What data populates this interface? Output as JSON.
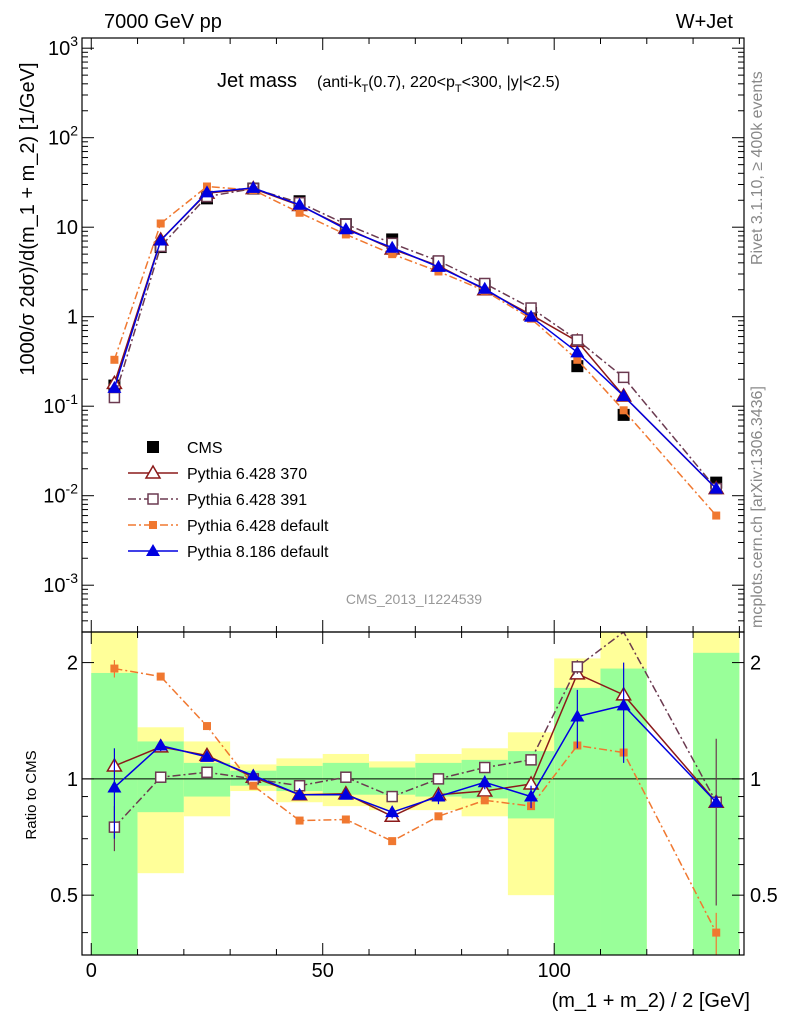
{
  "header": {
    "left": "7000 GeV pp",
    "right": "W+Jet"
  },
  "side_text": {
    "rivet": "Rivet 3.1.10, ≥ 400k events",
    "mcplots": "mcplots.cern.ch [arXiv:1306.3436]"
  },
  "chart_data": [
    {
      "type": "line",
      "panel": "main",
      "title_main": "Jet mass",
      "title_sub_parts": [
        "(anti-k",
        "T",
        "(0.7), 220<p",
        "T",
        "<300, |y|<2.5)"
      ],
      "ylabel": "1000/σ 2dσ)/d(m_1 + m_2) [1/GeV]",
      "yscale": "log",
      "ylim": [
        0.0003,
        1300
      ],
      "xlim": [
        -2,
        141
      ],
      "y_tick_labels": [
        {
          "base": "10",
          "exp": "-3",
          "value": 0.001
        },
        {
          "base": "10",
          "exp": "-2",
          "value": 0.01
        },
        {
          "base": "10",
          "exp": "-1",
          "value": 0.1
        },
        {
          "base": "1",
          "exp": "",
          "value": 1
        },
        {
          "base": "10",
          "exp": "",
          "value": 10
        },
        {
          "base": "10",
          "exp": "2",
          "value": 100
        },
        {
          "base": "10",
          "exp": "3",
          "value": 1000
        }
      ],
      "analysis_label": "CMS_2013_I1224539",
      "legend_position": "lower-left",
      "series": [
        {
          "name": "CMS",
          "color": "#000000",
          "marker": "filled-square",
          "line": "none",
          "x": [
            5,
            15,
            25,
            35,
            45,
            55,
            65,
            75,
            85,
            95,
            105,
            115,
            135
          ],
          "y": [
            0.17,
            6.0,
            21,
            27,
            19.5,
            10.8,
            7.3,
            4.1,
            2.2,
            1.1,
            0.28,
            0.08,
            0.014
          ]
        },
        {
          "name": "Pythia 6.428 370",
          "color": "#8B1A1A",
          "marker": "open-triangle",
          "line": "solid",
          "x": [
            5,
            15,
            25,
            35,
            45,
            55,
            65,
            75,
            85,
            95,
            105,
            115,
            135
          ],
          "y": [
            0.18,
            7.2,
            24,
            27,
            17.5,
            9.8,
            5.7,
            3.7,
            2.0,
            1.05,
            0.53,
            0.13,
            0.012
          ]
        },
        {
          "name": "Pythia 6.428 391",
          "color": "#6B3A50",
          "marker": "open-square",
          "line": "dashdot",
          "x": [
            5,
            15,
            25,
            35,
            45,
            55,
            65,
            75,
            85,
            95,
            105,
            115,
            135
          ],
          "y": [
            0.125,
            6.1,
            22,
            27,
            18.8,
            10.8,
            6.6,
            4.2,
            2.35,
            1.25,
            0.55,
            0.21,
            0.012
          ]
        },
        {
          "name": "Pythia 6.428 default",
          "color": "#F07830",
          "marker": "filled-square-small",
          "line": "dashdot",
          "x": [
            5,
            15,
            25,
            35,
            45,
            55,
            65,
            75,
            85,
            95,
            105,
            115,
            135
          ],
          "y": [
            0.33,
            11,
            28.5,
            26,
            14.5,
            8.3,
            5.0,
            3.2,
            1.95,
            0.95,
            0.33,
            0.09,
            0.006
          ]
        },
        {
          "name": "Pythia 8.186 default",
          "color": "#0000E0",
          "marker": "filled-triangle",
          "line": "solid",
          "x": [
            5,
            15,
            25,
            35,
            45,
            55,
            65,
            75,
            85,
            95,
            105,
            115,
            135
          ],
          "y": [
            0.16,
            7.1,
            24.5,
            27.5,
            17.8,
            9.5,
            5.9,
            3.6,
            2.05,
            1.0,
            0.4,
            0.13,
            0.012
          ]
        }
      ]
    },
    {
      "type": "line",
      "panel": "ratio",
      "ylabel": "Ratio to CMS",
      "xlabel": "(m_1 + m_2) / 2 [GeV]",
      "yscale": "log",
      "ylim": [
        0.35,
        2.4
      ],
      "xlim": [
        -2,
        141
      ],
      "x_tick_labels": [
        "0",
        "50",
        "100"
      ],
      "x_tick_values": [
        0,
        50,
        100
      ],
      "y_tick_labels": [
        "0.5",
        "1",
        "2"
      ],
      "y_tick_values": [
        0.5,
        1,
        2
      ],
      "uncertainty_bands": {
        "green_color": "#99FF99",
        "yellow_color": "#FFFF99",
        "bins": [
          {
            "x0": 0,
            "x1": 10,
            "green": [
              0.35,
              1.88
            ],
            "yellow": [
              0.35,
              2.4
            ]
          },
          {
            "x0": 10,
            "x1": 20,
            "green": [
              0.82,
              1.25
            ],
            "yellow": [
              0.57,
              1.36
            ]
          },
          {
            "x0": 20,
            "x1": 30,
            "green": [
              0.9,
              1.1
            ],
            "yellow": [
              0.8,
              1.25
            ]
          },
          {
            "x0": 30,
            "x1": 40,
            "green": [
              0.96,
              1.05
            ],
            "yellow": [
              0.93,
              1.09
            ]
          },
          {
            "x0": 40,
            "x1": 50,
            "green": [
              0.93,
              1.08
            ],
            "yellow": [
              0.87,
              1.13
            ]
          },
          {
            "x0": 50,
            "x1": 60,
            "green": [
              0.91,
              1.1
            ],
            "yellow": [
              0.85,
              1.16
            ]
          },
          {
            "x0": 60,
            "x1": 70,
            "green": [
              0.91,
              1.07
            ],
            "yellow": [
              0.83,
              1.11
            ]
          },
          {
            "x0": 70,
            "x1": 80,
            "green": [
              0.9,
              1.1
            ],
            "yellow": [
              0.83,
              1.16
            ]
          },
          {
            "x0": 80,
            "x1": 90,
            "green": [
              0.89,
              1.12
            ],
            "yellow": [
              0.8,
              1.2
            ]
          },
          {
            "x0": 90,
            "x1": 100,
            "green": [
              0.79,
              1.18
            ],
            "yellow": [
              0.5,
              1.32
            ]
          },
          {
            "x0": 100,
            "x1": 110,
            "green": [
              0.35,
              1.72
            ],
            "yellow": [
              0.35,
              2.05
            ]
          },
          {
            "x0": 110,
            "x1": 120,
            "green": [
              0.35,
              1.93
            ],
            "yellow": [
              0.35,
              2.4
            ]
          },
          {
            "x0": 130,
            "x1": 140,
            "green": [
              0.35,
              2.12
            ],
            "yellow": [
              0.35,
              2.4
            ]
          }
        ]
      },
      "series": [
        {
          "name": "Pythia 6.428 370",
          "color": "#8B1A1A",
          "marker": "open-triangle",
          "line": "solid",
          "x": [
            5,
            15,
            25,
            35,
            45,
            55,
            65,
            75,
            85,
            95,
            105,
            115,
            135
          ],
          "y": [
            1.08,
            1.21,
            1.15,
            1.01,
            0.91,
            0.915,
            0.8,
            0.91,
            0.93,
            0.97,
            1.87,
            1.65,
            0.87
          ],
          "err": [
            0,
            0,
            0,
            0,
            0,
            0,
            0,
            0,
            0,
            0,
            0,
            0,
            0
          ]
        },
        {
          "name": "Pythia 6.428 391",
          "color": "#6B3A50",
          "marker": "open-square",
          "line": "dashdot",
          "x": [
            5,
            15,
            25,
            35,
            45,
            55,
            65,
            75,
            85,
            95,
            105,
            115,
            135
          ],
          "y": [
            0.75,
            1.01,
            1.04,
            1.0,
            0.96,
            1.01,
            0.9,
            1.0,
            1.07,
            1.12,
            1.95,
            2.55,
            0.87
          ],
          "err": [
            0.1,
            0.02,
            0.02,
            0.01,
            0.01,
            0.01,
            0.01,
            0.02,
            0.02,
            0.03,
            0.08,
            0,
            0.4
          ]
        },
        {
          "name": "Pythia 6.428 default",
          "color": "#F07830",
          "marker": "filled-square-small",
          "line": "dashdot",
          "x": [
            5,
            15,
            25,
            35,
            45,
            55,
            65,
            75,
            85,
            95,
            105,
            115,
            135
          ],
          "y": [
            1.93,
            1.84,
            1.37,
            0.96,
            0.78,
            0.785,
            0.69,
            0.8,
            0.88,
            0.85,
            1.22,
            1.17,
            0.4
          ],
          "err": [
            0.1,
            0,
            0,
            0,
            0,
            0,
            0,
            0,
            0,
            0,
            0,
            0,
            0.05
          ]
        },
        {
          "name": "Pythia 8.186 default",
          "color": "#0000E0",
          "marker": "filled-triangle",
          "line": "solid",
          "x": [
            5,
            15,
            25,
            35,
            45,
            55,
            65,
            75,
            85,
            95,
            105,
            115,
            135
          ],
          "y": [
            0.95,
            1.22,
            1.14,
            1.02,
            0.91,
            0.91,
            0.82,
            0.9,
            0.98,
            0.9,
            1.45,
            1.55,
            0.87
          ],
          "err": [
            0.25,
            0.04,
            0.02,
            0.01,
            0.02,
            0.02,
            0.03,
            0.04,
            0.04,
            0.06,
            0.25,
            0.45,
            0
          ]
        }
      ]
    }
  ]
}
